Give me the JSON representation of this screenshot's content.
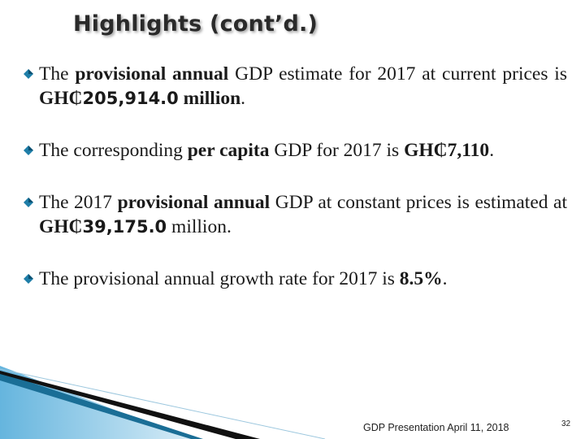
{
  "slide": {
    "title": "Highlights (cont’d.)",
    "bullets": [
      {
        "p1": "The ",
        "b1": "provisional annual",
        "p2": " GDP estimate for 2017 at current prices is ",
        "b2": "GH₵",
        "num": "205,914.0",
        "b3": " million",
        "p3": "."
      },
      {
        "p1": "The corresponding ",
        "b1": "per capita",
        "p2": " GDP for 2017 is ",
        "b2": "GH₵7,110",
        "p3": "."
      },
      {
        "p1": "The 2017 ",
        "b1": "provisional annual",
        "p2": " GDP at constant prices is estimated at ",
        "b2": "GH₵",
        "num": "39,175.0",
        "p3": " million."
      },
      {
        "p1": "The provisional annual growth rate for 2017 is ",
        "b1": "8.5%",
        "p2": "."
      }
    ],
    "footer": "GDP Presentation April 11, 2018",
    "page_number": "32",
    "bullet_icon": "diamond-bullet-icon",
    "accent_color": "#1f7ea8"
  }
}
